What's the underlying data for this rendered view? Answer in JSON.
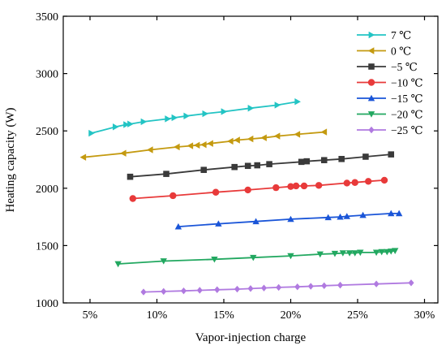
{
  "chart_data": {
    "type": "line",
    "title": "",
    "xlabel": "Vapor-injection charge",
    "ylabel": "Heating capacity (W)",
    "xlim": [
      0.03,
      0.31
    ],
    "ylim": [
      1000,
      3500
    ],
    "x_ticks": [
      0.05,
      0.1,
      0.15,
      0.2,
      0.25,
      0.3
    ],
    "x_tick_labels": [
      "5%",
      "10%",
      "15%",
      "20%",
      "25%",
      "30%"
    ],
    "y_ticks": [
      1000,
      1500,
      2000,
      2500,
      3000,
      3500
    ],
    "y_tick_labels": [
      "1000",
      "1500",
      "2000",
      "2500",
      "3000",
      "3500"
    ],
    "grid": false,
    "legend_position": "top-right",
    "series": [
      {
        "name": "7 ℃",
        "color": "#23c4c4",
        "marker": "triangle-right",
        "x": [
          0.051,
          0.069,
          0.077,
          0.08,
          0.09,
          0.108,
          0.113,
          0.122,
          0.136,
          0.15,
          0.17,
          0.19,
          0.205
        ],
        "y": [
          2480,
          2535,
          2555,
          2560,
          2580,
          2605,
          2615,
          2630,
          2650,
          2668,
          2698,
          2725,
          2755
        ]
      },
      {
        "name": "0 ℃",
        "color": "#c49a10",
        "marker": "triangle-left",
        "x": [
          0.045,
          0.075,
          0.095,
          0.115,
          0.125,
          0.13,
          0.135,
          0.14,
          0.155,
          0.16,
          0.17,
          0.18,
          0.19,
          0.205,
          0.225
        ],
        "y": [
          2270,
          2305,
          2335,
          2360,
          2370,
          2375,
          2380,
          2390,
          2410,
          2420,
          2430,
          2440,
          2455,
          2470,
          2490
        ]
      },
      {
        "name": "−5 ℃",
        "color": "#3a3a3a",
        "marker": "square",
        "x": [
          0.08,
          0.107,
          0.135,
          0.158,
          0.168,
          0.175,
          0.184,
          0.208,
          0.212,
          0.225,
          0.238,
          0.256,
          0.275
        ],
        "y": [
          2100,
          2125,
          2160,
          2185,
          2195,
          2200,
          2210,
          2230,
          2235,
          2245,
          2255,
          2275,
          2295
        ]
      },
      {
        "name": "−10 ℃",
        "color": "#e83a3a",
        "marker": "circle",
        "x": [
          0.082,
          0.112,
          0.144,
          0.168,
          0.189,
          0.2,
          0.204,
          0.21,
          0.221,
          0.242,
          0.248,
          0.258,
          0.27
        ],
        "y": [
          1910,
          1935,
          1965,
          1985,
          2005,
          2015,
          2020,
          2020,
          2025,
          2045,
          2050,
          2060,
          2070
        ]
      },
      {
        "name": "−15 ℃",
        "color": "#1a55d8",
        "marker": "triangle-up",
        "x": [
          0.116,
          0.146,
          0.174,
          0.2,
          0.228,
          0.237,
          0.242,
          0.254,
          0.275,
          0.281
        ],
        "y": [
          1665,
          1690,
          1710,
          1730,
          1745,
          1750,
          1755,
          1765,
          1780,
          1780
        ]
      },
      {
        "name": "−20 ℃",
        "color": "#22a860",
        "marker": "triangle-down",
        "x": [
          0.071,
          0.105,
          0.143,
          0.172,
          0.2,
          0.222,
          0.233,
          0.239,
          0.244,
          0.248,
          0.252,
          0.264,
          0.268,
          0.272,
          0.275,
          0.278
        ],
        "y": [
          1340,
          1365,
          1380,
          1395,
          1410,
          1425,
          1430,
          1435,
          1435,
          1435,
          1440,
          1440,
          1445,
          1445,
          1450,
          1455
        ]
      },
      {
        "name": "−25 ℃",
        "color": "#b07ae0",
        "marker": "diamond",
        "x": [
          0.09,
          0.105,
          0.12,
          0.132,
          0.145,
          0.16,
          0.17,
          0.18,
          0.191,
          0.205,
          0.215,
          0.225,
          0.237,
          0.264,
          0.29
        ],
        "y": [
          1095,
          1100,
          1105,
          1110,
          1115,
          1120,
          1125,
          1130,
          1135,
          1140,
          1145,
          1150,
          1155,
          1165,
          1175
        ]
      }
    ]
  }
}
